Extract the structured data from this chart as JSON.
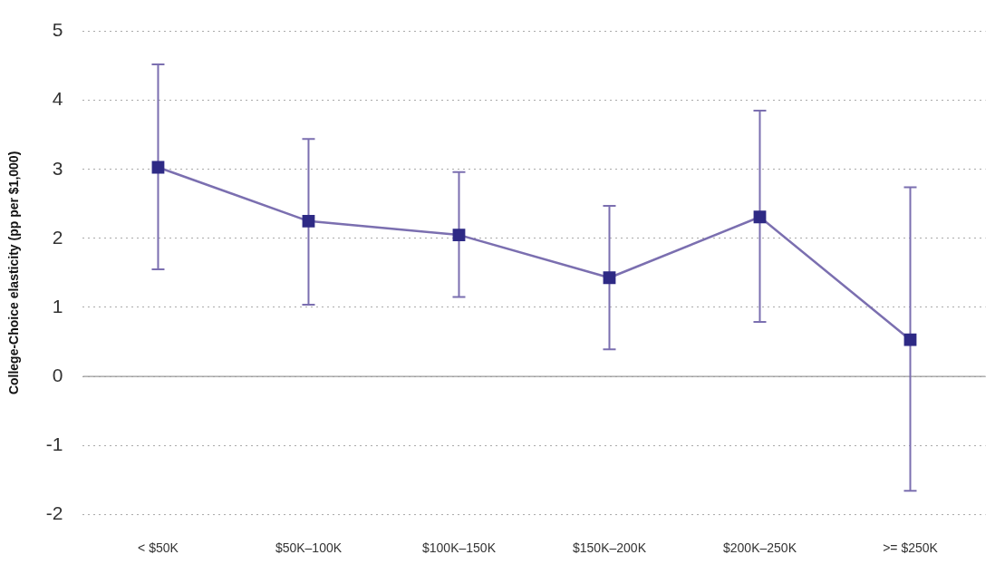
{
  "chart_data": {
    "type": "line",
    "ylabel": "College-Choice elasticity (pp per $1,000)",
    "categories": [
      "< $50K",
      "$50K–100K",
      "$100K–150K",
      "$150K–200K",
      "$200K–250K",
      ">= $250K"
    ],
    "series": [
      {
        "color": "#7b6fb0",
        "colors": [
          "#2e2a85",
          "#2e2a85",
          "#2e2a85",
          "#2e2a85",
          "#2e2a85",
          "#2e2a85"
        ],
        "values": [
          3.03,
          2.25,
          2.05,
          1.43,
          2.31,
          0.53
        ],
        "errors": [
          [
            1.55,
            4.52
          ],
          [
            1.04,
            3.44
          ],
          [
            1.15,
            2.96
          ],
          [
            0.39,
            2.47
          ],
          [
            0.79,
            3.85
          ],
          [
            -1.66,
            2.74
          ]
        ]
      }
    ],
    "ylim": [
      -2,
      5
    ],
    "yticks": [
      -2,
      -1,
      0,
      1,
      2,
      3,
      4,
      5
    ],
    "grid": "y",
    "marker": "square",
    "line_style": "solid",
    "legend": false,
    "ref_lines": [
      {
        "axis": "y",
        "value": 0,
        "color": "#999999",
        "line_style": "solid"
      }
    ]
  }
}
